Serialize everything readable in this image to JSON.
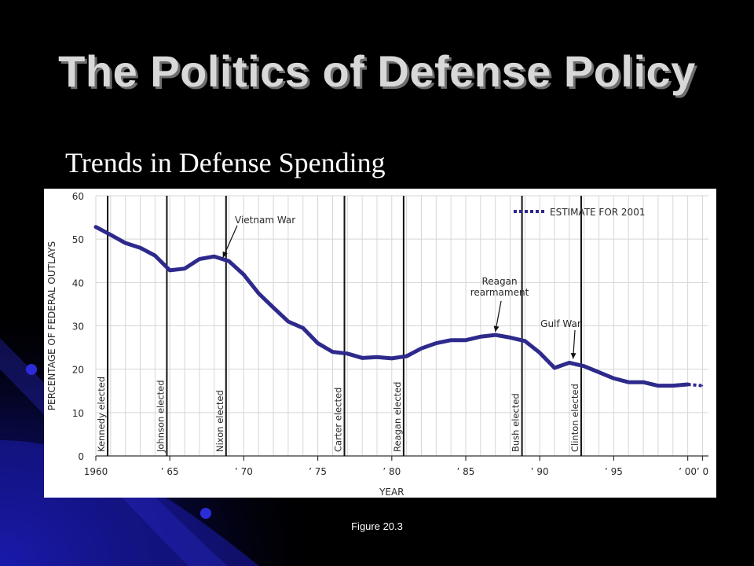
{
  "slide": {
    "title": "The Politics of Defense Policy",
    "subtitle": "Trends in Defense Spending",
    "caption": "Figure 20.3"
  },
  "colors": {
    "background": "#000000",
    "accent_blue": "#1a1aa8",
    "line": "#2e2a8c",
    "grid": "#d6d6d6"
  },
  "chart_data": {
    "type": "line",
    "title": "",
    "xlabel": "YEAR",
    "ylabel": "PERCENTAGE OF FEDERAL OUTLAYS",
    "xlim": [
      1960,
      2001
    ],
    "ylim": [
      0,
      60
    ],
    "grid": true,
    "xticks": [
      {
        "value": 1960,
        "label": "1960"
      },
      {
        "value": 1965,
        "label": "’ 65"
      },
      {
        "value": 1970,
        "label": "’ 70"
      },
      {
        "value": 1975,
        "label": "’ 75"
      },
      {
        "value": 1980,
        "label": "’ 80"
      },
      {
        "value": 1985,
        "label": "’ 85"
      },
      {
        "value": 1990,
        "label": "’ 90"
      },
      {
        "value": 1995,
        "label": "’ 95"
      },
      {
        "value": 2000,
        "label": "’ 00"
      },
      {
        "value": 2001,
        "label": "’ 0"
      }
    ],
    "yticks": [
      0,
      10,
      20,
      30,
      40,
      50,
      60
    ],
    "series": [
      {
        "x": [
          1960,
          1961,
          1962,
          1963,
          1964,
          1965,
          1966,
          1967,
          1968,
          1969,
          1970,
          1971,
          1972,
          1973,
          1974,
          1975,
          1976,
          1977,
          1978,
          1979,
          1980,
          1981,
          1982,
          1983,
          1984,
          1985,
          1986,
          1987,
          1988,
          1989,
          1990,
          1991,
          1992,
          1993,
          1994,
          1995,
          1996,
          1997,
          1998,
          1999,
          2000
        ],
        "values": [
          52.8,
          51,
          49.1,
          48,
          46.2,
          42.8,
          43.2,
          45.4,
          46,
          44.9,
          41.8,
          37.5,
          34.2,
          31,
          29.5,
          26,
          24,
          23.6,
          22.6,
          22.8,
          22.5,
          23,
          24.8,
          26,
          26.7,
          26.7,
          27.5,
          27.9,
          27.3,
          26.5,
          23.8,
          20.3,
          21.5,
          20.7,
          19.3,
          17.9,
          17,
          17,
          16.2,
          16.2,
          16.5
        ]
      },
      {
        "name": "ESTIMATE FOR 2001",
        "dashed": true,
        "x": [
          2000,
          2001
        ],
        "values": [
          16.5,
          16.2
        ]
      }
    ],
    "event_lines": [
      {
        "year": 1960.8,
        "label": "Kennedy elected"
      },
      {
        "year": 1964.8,
        "label": "Johnson elected"
      },
      {
        "year": 1968.8,
        "label": "Nixon elected"
      },
      {
        "year": 1976.8,
        "label": "Carter elected"
      },
      {
        "year": 1980.8,
        "label": "Reagan elected"
      },
      {
        "year": 1988.8,
        "label": "Bush elected"
      },
      {
        "year": 1992.8,
        "label": "Clinton elected"
      }
    ],
    "annotations": [
      {
        "text": [
          "Vietnam War"
        ],
        "x": 1968.8,
        "y": 45
      },
      {
        "text": [
          "Reagan",
          "rearmament"
        ],
        "x": 1987,
        "y": 27.9
      },
      {
        "text": [
          "Gulf War"
        ],
        "x": 1992.2,
        "y": 21.5
      }
    ],
    "legend": {
      "label": "ESTIMATE FOR 2001",
      "placement": "top-right"
    }
  }
}
